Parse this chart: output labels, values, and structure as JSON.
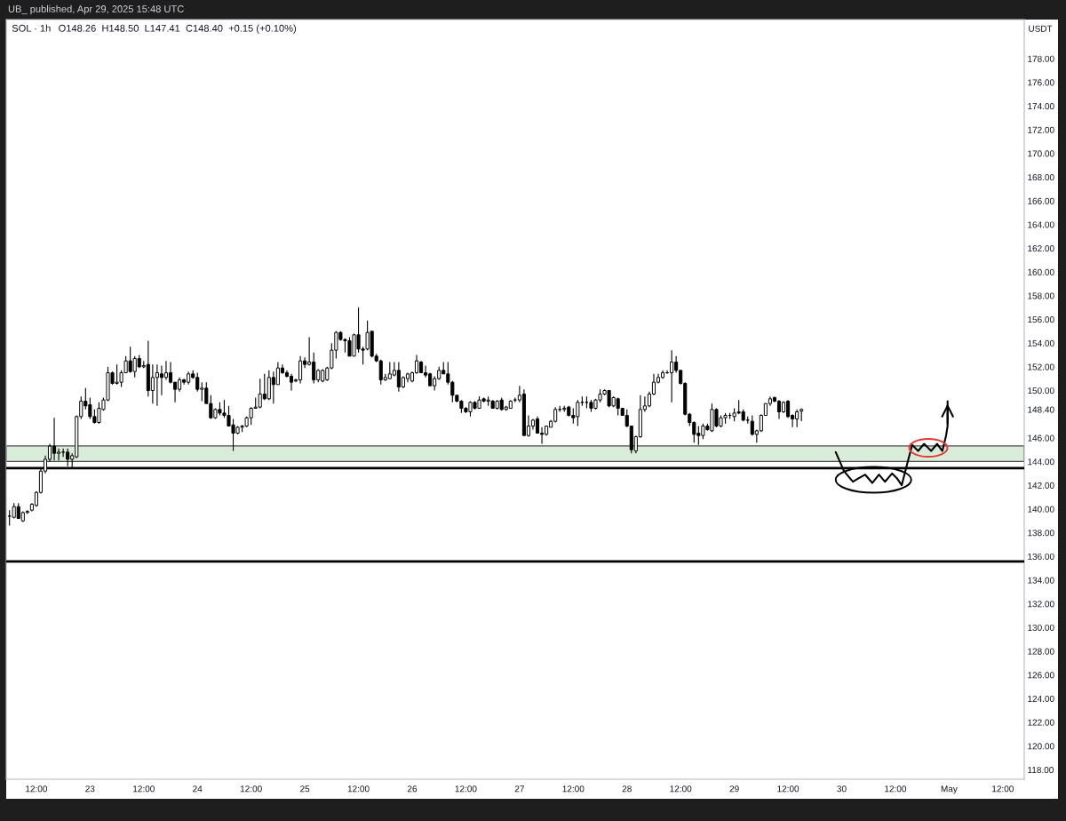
{
  "chart_data": {
    "type": "candlestick",
    "title": "SOL · 1h",
    "subtitle": "O148.26  H148.50  L147.41  C148.40  +0.15 (+0.10%)",
    "ylabel": "USDT",
    "annotations": [
      "UB_ published, Apr 29, 2025 15:48 UTC"
    ],
    "xlim": [
      "2025-04-22T05:16",
      "2025-05-01T16:48"
    ],
    "ylim": [
      117.2,
      181.3
    ],
    "xticks": [
      {
        "value": "2025-04-22T12:00",
        "label": "12:00"
      },
      {
        "value": "2025-04-23",
        "label": "23"
      },
      {
        "value": "2025-04-23T12:00",
        "label": "12:00"
      },
      {
        "value": "2025-04-24",
        "label": "24"
      },
      {
        "value": "2025-04-24T12:00",
        "label": "12:00"
      },
      {
        "value": "2025-04-25",
        "label": "25"
      },
      {
        "value": "2025-04-25T12:00",
        "label": "12:00"
      },
      {
        "value": "2025-04-26",
        "label": "26"
      },
      {
        "value": "2025-04-26T12:00",
        "label": "12:00"
      },
      {
        "value": "2025-04-27",
        "label": "27"
      },
      {
        "value": "2025-04-27T12:00",
        "label": "12:00"
      },
      {
        "value": "2025-04-28",
        "label": "28"
      },
      {
        "value": "2025-04-28T12:00",
        "label": "12:00"
      },
      {
        "value": "2025-04-29",
        "label": "29"
      },
      {
        "value": "2025-04-29T12:00",
        "label": "12:00"
      },
      {
        "value": "2025-04-30",
        "label": "30"
      },
      {
        "value": "2025-04-30T12:00",
        "label": "12:00"
      },
      {
        "value": "2025-05-01",
        "label": "May"
      },
      {
        "value": "2025-05-01T12:00",
        "label": "12:00"
      }
    ],
    "yticks": [
      {
        "value": 118,
        "label": "118.00"
      },
      {
        "value": 120,
        "label": "120.00"
      },
      {
        "value": 122,
        "label": "122.00"
      },
      {
        "value": 124,
        "label": "124.00"
      },
      {
        "value": 126,
        "label": "126.00"
      },
      {
        "value": 128,
        "label": "128.00"
      },
      {
        "value": 130,
        "label": "130.00"
      },
      {
        "value": 132,
        "label": "132.00"
      },
      {
        "value": 134,
        "label": "134.00"
      },
      {
        "value": 136,
        "label": "136.00"
      },
      {
        "value": 138,
        "label": "138.00"
      },
      {
        "value": 140,
        "label": "140.00"
      },
      {
        "value": 142,
        "label": "142.00"
      },
      {
        "value": 144,
        "label": "144.00"
      },
      {
        "value": 146,
        "label": "146.00"
      },
      {
        "value": 148.4,
        "label": "148.40"
      },
      {
        "value": 150,
        "label": "150.00"
      },
      {
        "value": 152,
        "label": "152.00"
      },
      {
        "value": 154,
        "label": "154.00"
      },
      {
        "value": 156,
        "label": "156.00"
      },
      {
        "value": 158,
        "label": "158.00"
      },
      {
        "value": 160,
        "label": "160.00"
      },
      {
        "value": 162,
        "label": "162.00"
      },
      {
        "value": 164,
        "label": "164.00"
      },
      {
        "value": 166,
        "label": "166.00"
      },
      {
        "value": 168,
        "label": "168.00"
      },
      {
        "value": 170,
        "label": "170.00"
      },
      {
        "value": 172,
        "label": "172.00"
      },
      {
        "value": 174,
        "label": "174.00"
      },
      {
        "value": 176,
        "label": "176.00"
      },
      {
        "value": 178,
        "label": "178.00"
      }
    ],
    "ref_lines": [
      {
        "axis": "y",
        "value": 143.45,
        "color": "#000000"
      },
      {
        "axis": "y",
        "value": 135.57,
        "color": "#000000"
      }
    ],
    "bands": [
      {
        "axis": "y",
        "from": 144.01,
        "to": 145.32,
        "color": "#d9ecd9"
      }
    ],
    "x": [
      "2025-04-22T06:00",
      "2025-04-22T07:00",
      "2025-04-22T08:00",
      "2025-04-22T09:00",
      "2025-04-22T10:00",
      "2025-04-22T11:00",
      "2025-04-22T12:00",
      "2025-04-22T13:00",
      "2025-04-22T14:00",
      "2025-04-22T15:00",
      "2025-04-22T16:00",
      "2025-04-22T17:00",
      "2025-04-22T18:00",
      "2025-04-22T19:00",
      "2025-04-22T20:00",
      "2025-04-22T21:00",
      "2025-04-22T22:00",
      "2025-04-22T23:00",
      "2025-04-23T00:00",
      "2025-04-23T01:00",
      "2025-04-23T02:00",
      "2025-04-23T03:00",
      "2025-04-23T04:00",
      "2025-04-23T05:00",
      "2025-04-23T06:00",
      "2025-04-23T07:00",
      "2025-04-23T08:00",
      "2025-04-23T09:00",
      "2025-04-23T10:00",
      "2025-04-23T11:00",
      "2025-04-23T12:00",
      "2025-04-23T13:00",
      "2025-04-23T14:00",
      "2025-04-23T15:00",
      "2025-04-23T16:00",
      "2025-04-23T17:00",
      "2025-04-23T18:00",
      "2025-04-23T19:00",
      "2025-04-23T20:00",
      "2025-04-23T21:00",
      "2025-04-23T22:00",
      "2025-04-23T23:00",
      "2025-04-24T00:00",
      "2025-04-24T01:00",
      "2025-04-24T02:00",
      "2025-04-24T03:00",
      "2025-04-24T04:00",
      "2025-04-24T05:00",
      "2025-04-24T06:00",
      "2025-04-24T07:00",
      "2025-04-24T08:00",
      "2025-04-24T09:00",
      "2025-04-24T10:00",
      "2025-04-24T11:00",
      "2025-04-24T12:00",
      "2025-04-24T13:00",
      "2025-04-24T14:00",
      "2025-04-24T15:00",
      "2025-04-24T16:00",
      "2025-04-24T17:00",
      "2025-04-24T18:00",
      "2025-04-24T19:00",
      "2025-04-24T20:00",
      "2025-04-24T21:00",
      "2025-04-24T22:00",
      "2025-04-24T23:00",
      "2025-04-25T00:00",
      "2025-04-25T01:00",
      "2025-04-25T02:00",
      "2025-04-25T03:00",
      "2025-04-25T04:00",
      "2025-04-25T05:00",
      "2025-04-25T06:00",
      "2025-04-25T07:00",
      "2025-04-25T08:00",
      "2025-04-25T09:00",
      "2025-04-25T10:00",
      "2025-04-25T11:00",
      "2025-04-25T12:00",
      "2025-04-25T13:00",
      "2025-04-25T14:00",
      "2025-04-25T15:00",
      "2025-04-25T16:00",
      "2025-04-25T17:00",
      "2025-04-25T18:00",
      "2025-04-25T19:00",
      "2025-04-25T20:00",
      "2025-04-25T21:00",
      "2025-04-25T22:00",
      "2025-04-25T23:00",
      "2025-04-26T00:00",
      "2025-04-26T01:00",
      "2025-04-26T02:00",
      "2025-04-26T03:00",
      "2025-04-26T04:00",
      "2025-04-26T05:00",
      "2025-04-26T06:00",
      "2025-04-26T07:00",
      "2025-04-26T08:00",
      "2025-04-26T09:00",
      "2025-04-26T10:00",
      "2025-04-26T11:00",
      "2025-04-26T12:00",
      "2025-04-26T13:00",
      "2025-04-26T14:00",
      "2025-04-26T15:00",
      "2025-04-26T16:00",
      "2025-04-26T17:00",
      "2025-04-26T18:00",
      "2025-04-26T19:00",
      "2025-04-26T20:00",
      "2025-04-26T21:00",
      "2025-04-26T22:00",
      "2025-04-26T23:00",
      "2025-04-27T00:00",
      "2025-04-27T01:00",
      "2025-04-27T02:00",
      "2025-04-27T03:00",
      "2025-04-27T04:00",
      "2025-04-27T05:00",
      "2025-04-27T06:00",
      "2025-04-27T07:00",
      "2025-04-27T08:00",
      "2025-04-27T09:00",
      "2025-04-27T10:00",
      "2025-04-27T11:00",
      "2025-04-27T12:00",
      "2025-04-27T13:00",
      "2025-04-27T14:00",
      "2025-04-27T15:00",
      "2025-04-27T16:00",
      "2025-04-27T17:00",
      "2025-04-27T18:00",
      "2025-04-27T19:00",
      "2025-04-27T20:00",
      "2025-04-27T21:00",
      "2025-04-27T22:00",
      "2025-04-27T23:00",
      "2025-04-28T00:00",
      "2025-04-28T01:00",
      "2025-04-28T02:00",
      "2025-04-28T03:00",
      "2025-04-28T04:00",
      "2025-04-28T05:00",
      "2025-04-28T06:00",
      "2025-04-28T07:00",
      "2025-04-28T08:00",
      "2025-04-28T09:00",
      "2025-04-28T10:00",
      "2025-04-28T11:00",
      "2025-04-28T12:00",
      "2025-04-28T13:00",
      "2025-04-28T14:00",
      "2025-04-28T15:00",
      "2025-04-28T16:00",
      "2025-04-28T17:00",
      "2025-04-28T18:00",
      "2025-04-28T19:00",
      "2025-04-28T20:00",
      "2025-04-28T21:00",
      "2025-04-28T22:00",
      "2025-04-28T23:00",
      "2025-04-29T00:00",
      "2025-04-29T01:00",
      "2025-04-29T02:00",
      "2025-04-29T03:00",
      "2025-04-29T04:00",
      "2025-04-29T05:00",
      "2025-04-29T06:00",
      "2025-04-29T07:00",
      "2025-04-29T08:00",
      "2025-04-29T09:00",
      "2025-04-29T10:00",
      "2025-04-29T11:00",
      "2025-04-29T12:00",
      "2025-04-29T13:00",
      "2025-04-29T14:00",
      "2025-04-29T15:00"
    ],
    "ohlc": [
      [
        139.4,
        139.9,
        138.6,
        139.4
      ],
      [
        139.3,
        140.5,
        139.2,
        140.2
      ],
      [
        140.2,
        140.5,
        139.2,
        139.2
      ],
      [
        139.0,
        139.8,
        138.9,
        139.7
      ],
      [
        139.7,
        139.9,
        139.6,
        139.8
      ],
      [
        139.9,
        140.5,
        139.8,
        140.4
      ],
      [
        140.3,
        141.5,
        140.2,
        141.4
      ],
      [
        141.4,
        143.5,
        141.3,
        143.2
      ],
      [
        143.2,
        144.5,
        143.0,
        144.2
      ],
      [
        144.2,
        145.5,
        144.0,
        145.3
      ],
      [
        145.3,
        147.7,
        144.1,
        144.7
      ],
      [
        144.7,
        145.1,
        144.1,
        144.8
      ],
      [
        144.8,
        145.1,
        144.4,
        144.8
      ],
      [
        144.8,
        145.1,
        143.6,
        144.2
      ],
      [
        144.2,
        144.7,
        143.5,
        144.5
      ],
      [
        144.4,
        147.9,
        144.3,
        147.8
      ],
      [
        147.8,
        149.5,
        147.6,
        149.1
      ],
      [
        149.1,
        150.2,
        148.4,
        148.7
      ],
      [
        148.8,
        149.4,
        147.6,
        147.8
      ],
      [
        147.8,
        148.4,
        147.2,
        147.3
      ],
      [
        147.3,
        149.0,
        147.2,
        148.5
      ],
      [
        148.4,
        149.4,
        148.3,
        149.2
      ],
      [
        149.2,
        152.0,
        149.1,
        151.5
      ],
      [
        151.5,
        151.6,
        150.5,
        150.6
      ],
      [
        150.6,
        152.2,
        150.5,
        150.7
      ],
      [
        150.7,
        151.7,
        150.3,
        151.5
      ],
      [
        151.5,
        152.9,
        151.5,
        152.5
      ],
      [
        152.5,
        153.7,
        151.5,
        151.6
      ],
      [
        151.6,
        152.9,
        151.1,
        152.7
      ],
      [
        152.7,
        153.0,
        151.9,
        152.0
      ],
      [
        152.0,
        152.5,
        151.9,
        152.1
      ],
      [
        152.2,
        154.2,
        149.5,
        150.0
      ],
      [
        150.0,
        152.2,
        148.9,
        151.1
      ],
      [
        151.1,
        152.2,
        148.7,
        151.5
      ],
      [
        151.4,
        152.1,
        149.6,
        151.1
      ],
      [
        151.1,
        152.5,
        150.9,
        151.5
      ],
      [
        151.5,
        152.4,
        150.6,
        150.7
      ],
      [
        150.7,
        150.7,
        149.0,
        150.1
      ],
      [
        150.1,
        151.1,
        149.9,
        150.9
      ],
      [
        150.9,
        151.0,
        150.5,
        150.7
      ],
      [
        150.7,
        151.6,
        150.5,
        151.4
      ],
      [
        151.4,
        151.7,
        151.0,
        151.1
      ],
      [
        151.1,
        151.5,
        149.9,
        150.1
      ],
      [
        150.1,
        150.7,
        149.1,
        150.2
      ],
      [
        150.2,
        150.7,
        148.9,
        148.9
      ],
      [
        148.9,
        149.6,
        147.6,
        147.7
      ],
      [
        147.7,
        148.5,
        147.6,
        148.4
      ],
      [
        148.4,
        149.0,
        147.9,
        148.1
      ],
      [
        148.1,
        149.2,
        147.7,
        147.9
      ],
      [
        147.9,
        148.7,
        147.0,
        147.0
      ],
      [
        147.1,
        147.6,
        144.9,
        146.4
      ],
      [
        146.4,
        147.0,
        146.3,
        146.9
      ],
      [
        146.9,
        147.1,
        146.5,
        147.0
      ],
      [
        147.0,
        147.8,
        146.9,
        147.7
      ],
      [
        147.7,
        148.6,
        147.1,
        148.5
      ],
      [
        148.5,
        149.4,
        148.5,
        148.6
      ],
      [
        148.6,
        151.0,
        148.5,
        149.7
      ],
      [
        149.7,
        151.4,
        149.2,
        149.3
      ],
      [
        149.3,
        151.7,
        149.2,
        151.1
      ],
      [
        151.1,
        151.6,
        148.9,
        150.5
      ],
      [
        150.5,
        152.4,
        150.5,
        151.9
      ],
      [
        151.9,
        152.2,
        151.4,
        151.5
      ],
      [
        151.5,
        151.7,
        151.1,
        151.2
      ],
      [
        151.2,
        151.4,
        150.0,
        150.7
      ],
      [
        150.8,
        151.0,
        150.7,
        150.9
      ],
      [
        150.9,
        152.9,
        150.6,
        152.5
      ],
      [
        152.5,
        152.8,
        151.9,
        152.2
      ],
      [
        152.2,
        154.5,
        152.1,
        152.4
      ],
      [
        152.4,
        153.2,
        150.6,
        150.9
      ],
      [
        150.9,
        151.8,
        150.7,
        151.7
      ],
      [
        150.8,
        151.8,
        150.7,
        151.7
      ],
      [
        150.9,
        152.0,
        150.8,
        151.9
      ],
      [
        151.9,
        154.0,
        151.8,
        153.4
      ],
      [
        153.4,
        155.0,
        152.7,
        154.9
      ],
      [
        154.9,
        155.0,
        154.2,
        154.3
      ],
      [
        154.3,
        154.4,
        153.2,
        154.2
      ],
      [
        154.2,
        154.5,
        152.9,
        152.9
      ],
      [
        152.9,
        154.8,
        152.9,
        154.7
      ],
      [
        154.7,
        157.0,
        153.2,
        153.5
      ],
      [
        153.5,
        153.7,
        152.2,
        153.4
      ],
      [
        153.5,
        155.9,
        153.4,
        154.9
      ],
      [
        155.0,
        155.0,
        152.8,
        152.9
      ],
      [
        152.9,
        153.1,
        152.4,
        152.5
      ],
      [
        152.5,
        152.6,
        150.5,
        150.9
      ],
      [
        150.9,
        151.4,
        150.8,
        151.1
      ],
      [
        151.0,
        152.4,
        151.0,
        151.4
      ],
      [
        151.3,
        152.4,
        151.2,
        151.7
      ],
      [
        151.7,
        152.4,
        149.9,
        150.3
      ],
      [
        150.3,
        151.2,
        150.2,
        151.1
      ],
      [
        151.0,
        151.5,
        150.7,
        151.4
      ],
      [
        150.8,
        151.6,
        150.7,
        151.5
      ],
      [
        151.5,
        153.0,
        151.4,
        152.5
      ],
      [
        152.4,
        152.5,
        151.5,
        151.5
      ],
      [
        151.5,
        152.1,
        151.1,
        151.3
      ],
      [
        151.4,
        151.5,
        150.4,
        150.4
      ],
      [
        150.4,
        151.2,
        150.0,
        151.0
      ],
      [
        151.0,
        152.0,
        150.9,
        151.7
      ],
      [
        151.7,
        152.4,
        151.4,
        151.4
      ],
      [
        151.4,
        152.4,
        150.5,
        150.7
      ],
      [
        150.7,
        150.8,
        149.0,
        149.6
      ],
      [
        149.6,
        149.6,
        149.0,
        149.1
      ],
      [
        149.1,
        149.2,
        148.1,
        148.5
      ],
      [
        148.5,
        148.6,
        148.1,
        148.2
      ],
      [
        148.2,
        149.1,
        147.8,
        149.0
      ],
      [
        149.0,
        149.1,
        148.4,
        148.5
      ],
      [
        148.5,
        149.5,
        148.5,
        149.2
      ],
      [
        149.3,
        149.4,
        149.0,
        149.1
      ],
      [
        149.1,
        149.5,
        148.7,
        149.2
      ],
      [
        149.1,
        149.2,
        148.5,
        148.5
      ],
      [
        148.5,
        149.2,
        148.4,
        149.1
      ],
      [
        149.2,
        149.4,
        148.3,
        148.4
      ],
      [
        148.4,
        148.7,
        148.3,
        148.6
      ],
      [
        148.5,
        149.2,
        148.5,
        149.1
      ],
      [
        149.2,
        149.4,
        149.0,
        149.2
      ],
      [
        149.2,
        150.4,
        149.0,
        149.6
      ],
      [
        149.7,
        150.1,
        146.2,
        146.2
      ],
      [
        146.2,
        147.9,
        146.1,
        147.0
      ],
      [
        147.0,
        147.6,
        146.7,
        147.5
      ],
      [
        147.6,
        147.8,
        146.4,
        146.4
      ],
      [
        146.4,
        146.9,
        145.5,
        146.3
      ],
      [
        146.3,
        147.0,
        146.2,
        147.0
      ],
      [
        146.9,
        147.5,
        146.9,
        147.4
      ],
      [
        147.4,
        148.6,
        147.3,
        148.4
      ],
      [
        148.4,
        148.7,
        148.2,
        148.4
      ],
      [
        148.4,
        148.7,
        148.2,
        148.5
      ],
      [
        148.6,
        148.7,
        147.8,
        147.9
      ],
      [
        147.9,
        148.5,
        147.2,
        147.7
      ],
      [
        147.8,
        149.2,
        147.0,
        149.0
      ],
      [
        149.0,
        149.5,
        148.7,
        149.0
      ],
      [
        149.0,
        149.5,
        148.5,
        149.0
      ],
      [
        149.0,
        149.2,
        148.2,
        148.5
      ],
      [
        148.5,
        149.3,
        148.4,
        149.2
      ],
      [
        149.2,
        150.1,
        149.0,
        149.7
      ],
      [
        149.7,
        150.1,
        149.6,
        150.0
      ],
      [
        150.0,
        150.0,
        148.6,
        148.7
      ],
      [
        148.7,
        149.5,
        148.6,
        149.4
      ],
      [
        149.3,
        149.4,
        147.9,
        148.5
      ],
      [
        148.5,
        148.5,
        147.9,
        147.9
      ],
      [
        147.9,
        148.4,
        146.9,
        147.0
      ],
      [
        147.0,
        147.0,
        144.7,
        145.0
      ],
      [
        144.9,
        146.2,
        144.7,
        146.1
      ],
      [
        146.1,
        149.6,
        146.0,
        148.4
      ],
      [
        148.4,
        149.5,
        148.2,
        148.7
      ],
      [
        148.7,
        149.9,
        148.6,
        149.7
      ],
      [
        149.7,
        151.4,
        149.6,
        150.7
      ],
      [
        150.7,
        151.4,
        150.6,
        151.1
      ],
      [
        151.1,
        151.7,
        151.0,
        151.5
      ],
      [
        151.5,
        151.7,
        151.4,
        151.5
      ],
      [
        151.5,
        153.4,
        149.0,
        152.4
      ],
      [
        152.4,
        152.9,
        151.5,
        151.7
      ],
      [
        151.7,
        151.7,
        150.5,
        150.6
      ],
      [
        150.6,
        150.7,
        147.9,
        148.0
      ],
      [
        148.0,
        148.1,
        147.0,
        147.3
      ],
      [
        147.3,
        147.4,
        145.6,
        146.3
      ],
      [
        146.4,
        147.0,
        145.4,
        146.2
      ],
      [
        146.2,
        147.2,
        145.9,
        147.0
      ],
      [
        147.0,
        147.2,
        146.6,
        146.7
      ],
      [
        146.6,
        148.9,
        146.5,
        148.4
      ],
      [
        148.4,
        148.5,
        146.9,
        147.0
      ],
      [
        147.0,
        147.9,
        146.9,
        147.7
      ],
      [
        147.7,
        148.1,
        147.2,
        147.9
      ],
      [
        147.9,
        148.1,
        147.6,
        147.9
      ],
      [
        147.8,
        148.5,
        147.4,
        148.1
      ],
      [
        148.2,
        149.2,
        148.0,
        148.1
      ],
      [
        148.2,
        148.4,
        147.4,
        147.5
      ],
      [
        147.5,
        147.8,
        147.2,
        147.5
      ],
      [
        147.4,
        147.9,
        146.2,
        146.3
      ],
      [
        146.3,
        146.7,
        145.6,
        146.6
      ],
      [
        146.6,
        148.0,
        146.5,
        147.9
      ],
      [
        147.9,
        148.9,
        147.9,
        148.9
      ],
      [
        148.9,
        149.5,
        148.7,
        149.3
      ],
      [
        149.4,
        149.5,
        149.0,
        149.1
      ],
      [
        149.1,
        149.2,
        147.6,
        148.2
      ],
      [
        148.2,
        149.1,
        148.1,
        149.0
      ],
      [
        149.1,
        149.2,
        147.7,
        147.8
      ],
      [
        147.9,
        148.0,
        146.9,
        147.6
      ],
      [
        147.6,
        148.4,
        146.9,
        148.2
      ],
      [
        148.26,
        148.5,
        147.41,
        148.4
      ]
    ],
    "series": [
      {
        "type": "line",
        "color": "#000000",
        "x": [
          "2025-04-29T22:40",
          "2025-04-30T00:30",
          "2025-04-30T02:30",
          "2025-04-30T03:50",
          "2025-04-30T05:15",
          "2025-04-30T06:50",
          "2025-04-30T08:20",
          "2025-04-30T09:40",
          "2025-04-30T11:15",
          "2025-04-30T12:20",
          "2025-04-30T13:25",
          "2025-04-30T14:25",
          "2025-04-30T15:45",
          "2025-04-30T17:05",
          "2025-04-30T18:25",
          "2025-04-30T20:00",
          "2025-04-30T21:20",
          "2025-04-30T22:30",
          "2025-04-30T23:20",
          "2025-04-30T23:40",
          "2025-04-30T23:40"
        ],
        "values": [
          144.8,
          143.2,
          142.3,
          142.6,
          142.9,
          142.2,
          142.9,
          142.3,
          143.0,
          142.6,
          142.0,
          143.5,
          145.4,
          144.9,
          145.5,
          144.9,
          145.5,
          144.9,
          146.2,
          147.0,
          149.1
        ]
      }
    ]
  }
}
